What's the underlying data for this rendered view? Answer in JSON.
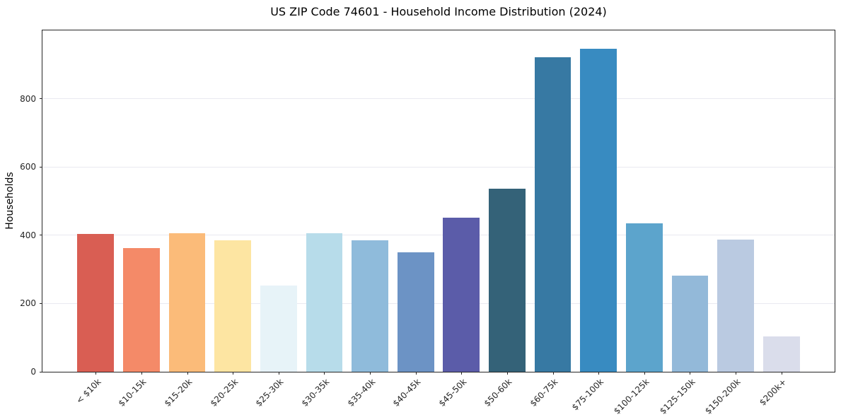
{
  "chart_data": {
    "type": "bar",
    "title": "US ZIP Code 74601 - Household Income Distribution (2024)",
    "xlabel": "",
    "ylabel": "Households",
    "ylim": [
      0,
      1000
    ],
    "yticks": [
      0,
      200,
      400,
      600,
      800
    ],
    "grid": true,
    "legend": "none",
    "categories": [
      "< $10k",
      "$10-15k",
      "$15-20k",
      "$20-25k",
      "$25-30k",
      "$30-35k",
      "$35-40k",
      "$40-45k",
      "$45-50k",
      "$50-60k",
      "$60-75k",
      "$75-100k",
      "$100-125k",
      "$125-150k",
      "$150-200k",
      "$200k+"
    ],
    "values": [
      403,
      362,
      405,
      386,
      252,
      405,
      385,
      349,
      452,
      537,
      922,
      947,
      434,
      281,
      387,
      103
    ],
    "bar_colors": [
      "#D95E53",
      "#F48A68",
      "#FBBB79",
      "#FDE5A2",
      "#E7F3F8",
      "#B7DCEA",
      "#8FBBDB",
      "#6C93C5",
      "#5B5CA9",
      "#346278",
      "#3779A3",
      "#388BC1",
      "#5CA4CC",
      "#93B9D9",
      "#BACAE1",
      "#DADDEB"
    ],
    "colors": {
      "background": "#ffffff",
      "spine": "#262626",
      "gridline": "#e9e9f0",
      "tick_label": "#262626",
      "title_text": "#000000"
    }
  }
}
